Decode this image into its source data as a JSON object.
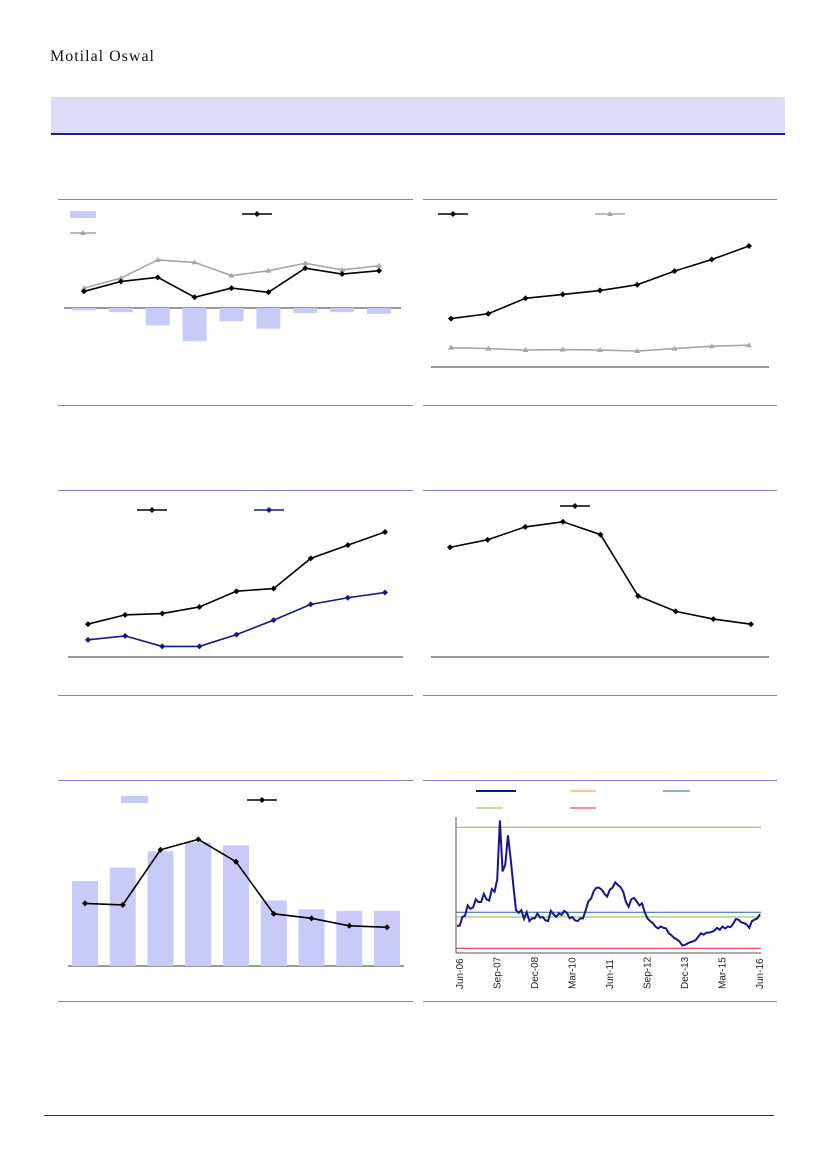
{
  "header": {
    "logo_text": "Motilal Oswal"
  },
  "colors": {
    "bar": "#c8caf8",
    "black": "#000000",
    "gray": "#a6a6a6",
    "navy": "#16168c",
    "orange": "#f08a3c",
    "green": "#7cc34a",
    "red": "#e0202a",
    "blue": "#2e5aa8",
    "rule": "#7d80c8"
  },
  "chart_data": [
    {
      "id": "c1",
      "type": "bar+line",
      "series": [
        {
          "name": "bars",
          "style": "bar",
          "values": [
            -0.3,
            -0.5,
            -2.1,
            -4.0,
            -1.6,
            -2.5,
            -0.6,
            -0.5,
            -0.7
          ]
        },
        {
          "name": "line-black",
          "style": "line",
          "values": [
            2.0,
            3.2,
            3.7,
            1.3,
            2.4,
            1.9,
            4.8,
            4.1,
            4.5
          ]
        },
        {
          "name": "line-gray",
          "style": "line",
          "values": [
            2.4,
            3.6,
            5.8,
            5.5,
            3.9,
            4.5,
            5.4,
            4.6,
            5.1
          ]
        }
      ]
    },
    {
      "id": "c2",
      "type": "line",
      "series": [
        {
          "name": "line-black",
          "values": [
            1.0,
            1.1,
            1.42,
            1.5,
            1.58,
            1.7,
            1.98,
            2.22,
            2.5
          ]
        },
        {
          "name": "line-gray",
          "values": [
            0.4,
            0.38,
            0.35,
            0.36,
            0.35,
            0.33,
            0.38,
            0.43,
            0.45
          ]
        }
      ]
    },
    {
      "id": "c3",
      "type": "line",
      "series": [
        {
          "name": "line-black",
          "values": [
            2.2,
            2.9,
            3.0,
            3.5,
            4.7,
            4.9,
            7.2,
            8.2,
            9.2
          ]
        },
        {
          "name": "line-navy",
          "values": [
            1.0,
            1.3,
            0.5,
            0.5,
            1.4,
            2.5,
            3.7,
            4.2,
            4.6
          ]
        }
      ]
    },
    {
      "id": "c4",
      "type": "line",
      "series": [
        {
          "name": "line-black",
          "values": [
            9.5,
            9.8,
            10.3,
            10.5,
            10.0,
            7.6,
            7.0,
            6.7,
            6.5
          ]
        }
      ]
    },
    {
      "id": "c5",
      "type": "bar+line",
      "series": [
        {
          "name": "bars",
          "style": "bar",
          "values": [
            5.7,
            6.6,
            7.7,
            8.3,
            8.1,
            4.4,
            3.8,
            3.7,
            3.7
          ]
        },
        {
          "name": "line-black",
          "style": "line",
          "values": [
            4.2,
            4.1,
            7.8,
            8.5,
            7.0,
            3.5,
            3.2,
            2.7,
            2.6
          ]
        }
      ]
    },
    {
      "id": "c6",
      "type": "line",
      "x_tick_labels": [
        "Jun-06",
        "Sep-07",
        "Dec-08",
        "Mar-10",
        "Jun-11",
        "Sep-12",
        "Dec-13",
        "Mar-15",
        "Jun-16"
      ],
      "reference_lines": {
        "orange": 31,
        "blue": 18.5,
        "green": 17.8,
        "red": 13.2
      },
      "ylim": [
        12.5,
        32.5
      ],
      "series": [
        {
          "name": "line-navy",
          "values": [
            16.5,
            16.5,
            17.8,
            18,
            19.5,
            19,
            19.2,
            20.4,
            20,
            20,
            21.2,
            20.4,
            20.2,
            21.9,
            21.5,
            23.3,
            32,
            24.5,
            25.5,
            29.8,
            26.4,
            22.5,
            18.8,
            18.4,
            18.8,
            17.5,
            18.5,
            17.2,
            17.6,
            17.6,
            18.3,
            17.7,
            17.8,
            17.3,
            17.2,
            18.7,
            18.2,
            17.8,
            18.3,
            18.1,
            18.7,
            18.4,
            17.6,
            17.8,
            17.3,
            17.2,
            17.6,
            17.6,
            18.8,
            20.1,
            20.5,
            21.6,
            22.1,
            22.1,
            21.8,
            21.2,
            20.8,
            21.8,
            22.1,
            22.9,
            22.5,
            22.2,
            21.5,
            20,
            19.3,
            20.4,
            20.6,
            20.1,
            19.5,
            19.8,
            18.5,
            17.6,
            17.2,
            16.9,
            16.4,
            16.1,
            16.4,
            16.2,
            16.1,
            15.4,
            15.1,
            14.7,
            14.5,
            14.2,
            13.6,
            13.7,
            13.9,
            14.1,
            14.2,
            14.4,
            14.9,
            15.4,
            15.2,
            15.5,
            15.5,
            15.6,
            15.8,
            16.2,
            15.9,
            16.4,
            16.1,
            16.4,
            16.3,
            16.8,
            17.5,
            17.4,
            17,
            16.9,
            16.7,
            16.2,
            17.2,
            17.4,
            17.6,
            18.2
          ]
        }
      ]
    }
  ]
}
